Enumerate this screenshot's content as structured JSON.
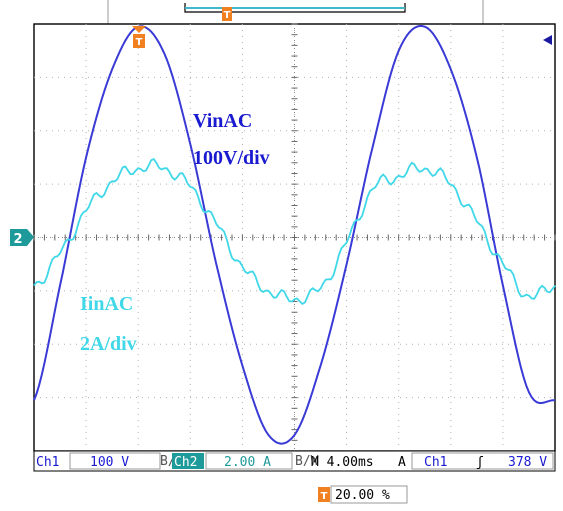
{
  "chart_data": {
    "type": "line",
    "title": "",
    "xlabel": "",
    "ylabel": "",
    "x_unit": "ms",
    "xlim": [
      0,
      40
    ],
    "ylim": [
      -4,
      4
    ],
    "grid": true,
    "series": [
      {
        "name": "VinAC",
        "scale": "100V/div",
        "color": "#3a3ad6",
        "x": [
          0,
          2,
          4,
          6,
          8,
          10,
          12,
          14,
          16,
          18,
          20,
          22,
          24,
          26,
          28,
          30,
          32,
          34,
          36,
          38,
          40
        ],
        "values": [
          -3.05,
          -0.9,
          1.5,
          3.15,
          3.95,
          3.45,
          1.75,
          -0.5,
          -2.4,
          -3.7,
          -3.7,
          -2.4,
          -0.5,
          1.7,
          3.5,
          3.95,
          3.15,
          1.5,
          -0.9,
          -2.9,
          -3.05
        ]
      },
      {
        "name": "IinAC",
        "scale": "2A/div",
        "color": "#40d8e8",
        "x": [
          0,
          2,
          4,
          6,
          8,
          10,
          12,
          14,
          16,
          18,
          20,
          22,
          24,
          26,
          28,
          30,
          32,
          34,
          36,
          38,
          40
        ],
        "values": [
          -0.9,
          -0.3,
          0.5,
          1.05,
          1.3,
          1.3,
          0.95,
          0.25,
          -0.55,
          -1.0,
          -1.15,
          -0.95,
          -0.1,
          0.9,
          1.15,
          1.3,
          1.0,
          0.3,
          -0.5,
          -1.1,
          -0.9
        ]
      }
    ]
  },
  "labels": {
    "vin_name": "VinAC",
    "vin_scale": "100V/div",
    "iin_name": "IinAC",
    "iin_scale": "2A/div"
  },
  "markers": {
    "trigger_top": "T",
    "ch2": "2"
  },
  "status_bar": {
    "ch1_label": "Ch1",
    "ch1_scale": "100 V",
    "bw1": "B/W",
    "ch2_label": "Ch2",
    "ch2_scale": "2.00 A",
    "bw2": "B/W",
    "timebase": "M 4.00ms",
    "trig_mode": "A",
    "trig_source": "Ch1",
    "trig_slope": "ʃ",
    "trig_level": "378 V"
  },
  "trigger_position": {
    "icon": "T",
    "value": "20.00 %"
  }
}
